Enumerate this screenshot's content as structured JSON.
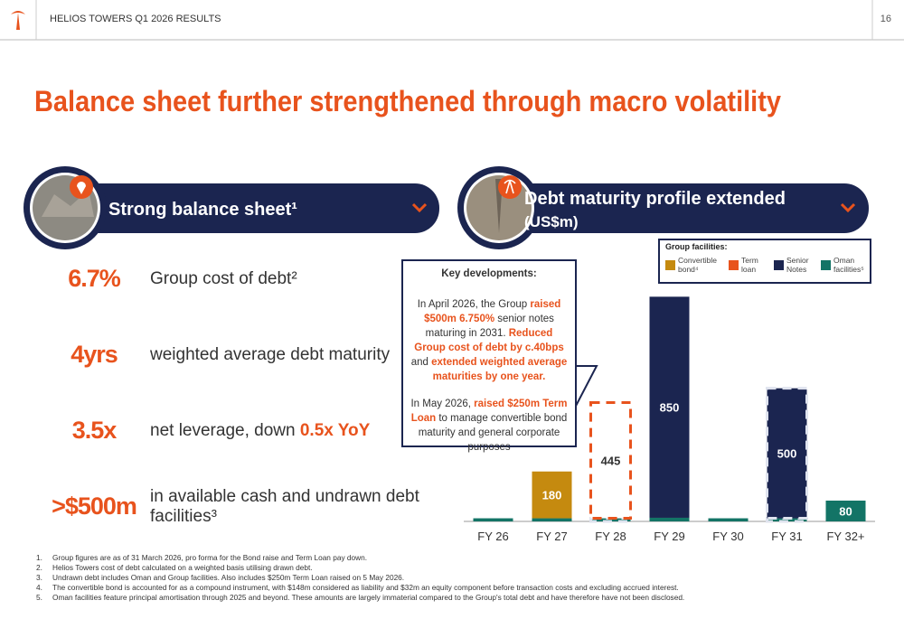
{
  "header": {
    "title": "HELIOS TOWERS Q1 2026 RESULTS",
    "page": "16"
  },
  "title": "Balance sheet further strengthened through macro volatility",
  "left_panel": {
    "heading": "Strong balance sheet¹",
    "metrics": [
      {
        "value": "6.7%",
        "label": [
          {
            "text": "Group cost of debt²"
          }
        ]
      },
      {
        "value": "4yrs",
        "label": [
          {
            "text": "weighted average debt maturity"
          }
        ]
      },
      {
        "value": "3.5x",
        "label": [
          {
            "text": "net leverage, down "
          },
          {
            "text": "0.5x YoY",
            "highlight": true
          }
        ]
      },
      {
        "value": ">$500m",
        "label": [
          {
            "text": "in available cash and undrawn debt facilities³"
          }
        ]
      }
    ]
  },
  "right_panel": {
    "heading": "Debt maturity profile extended",
    "unit": "(US$m)"
  },
  "key_developments": {
    "title": "Key developments:",
    "paragraphs": [
      [
        {
          "text": "In April 2026, the Group "
        },
        {
          "text": "raised $500m 6.750%",
          "highlight": true
        },
        {
          "text": " senior notes maturing in 2031. "
        },
        {
          "text": "Reduced Group cost of debt by c.40bps",
          "highlight": true
        },
        {
          "text": " and "
        },
        {
          "text": "extended weighted average maturities by one year.",
          "highlight": true
        }
      ],
      [
        {
          "text": "In May 2026, "
        },
        {
          "text": "raised $250m Term Loan",
          "highlight": true
        },
        {
          "text": " to manage convertible bond maturity and general corporate purposes"
        }
      ]
    ]
  },
  "chart_data": {
    "type": "stacked_bar",
    "legend_title": "Group facilities:",
    "categories": [
      "FY 26",
      "FY 27",
      "FY 28",
      "FY 29",
      "FY 30",
      "FY 31",
      "FY 32+"
    ],
    "series": [
      {
        "name": "Convertible bond⁴",
        "color": "#c58a0f",
        "values": [
          null,
          180,
          null,
          null,
          null,
          null,
          null
        ]
      },
      {
        "name": "Term loan",
        "color": "#e8531d",
        "fill": "#ffffff",
        "values": [
          null,
          null,
          445,
          null,
          null,
          null,
          null
        ]
      },
      {
        "name": "Senior Notes",
        "color": "#1b2550",
        "values": [
          null,
          null,
          null,
          850,
          null,
          500,
          null
        ]
      },
      {
        "name": "Oman facilities⁵",
        "color": "#137466",
        "values": [
          12,
          12,
          12,
          14,
          12,
          12,
          80
        ]
      }
    ],
    "dashed": [
      false,
      false,
      true,
      false,
      false,
      true,
      false
    ],
    "ylim": [
      0,
      900
    ]
  },
  "footnotes": [
    {
      "number": "1.",
      "text": "Group figures are as of 31 March 2026, pro forma for the Bond raise and Term Loan pay down."
    },
    {
      "number": "2.",
      "text": "Helios Towers cost of debt calculated on a weighted basis utilising drawn debt."
    },
    {
      "number": "3.",
      "text": "Undrawn debt includes Oman and Group facilities. Also includes $250m Term Loan raised on 5 May 2026."
    },
    {
      "number": "4.",
      "text": "The convertible bond is accounted for as a compound instrument, with $148m considered as liability and $32m an equity component before transaction costs and excluding accrued interest."
    },
    {
      "number": "5.",
      "text": "Oman facilities feature principal amortisation through 2025 and beyond. These amounts are largely immaterial compared to the Group's total debt and have therefore have not been disclosed."
    }
  ]
}
